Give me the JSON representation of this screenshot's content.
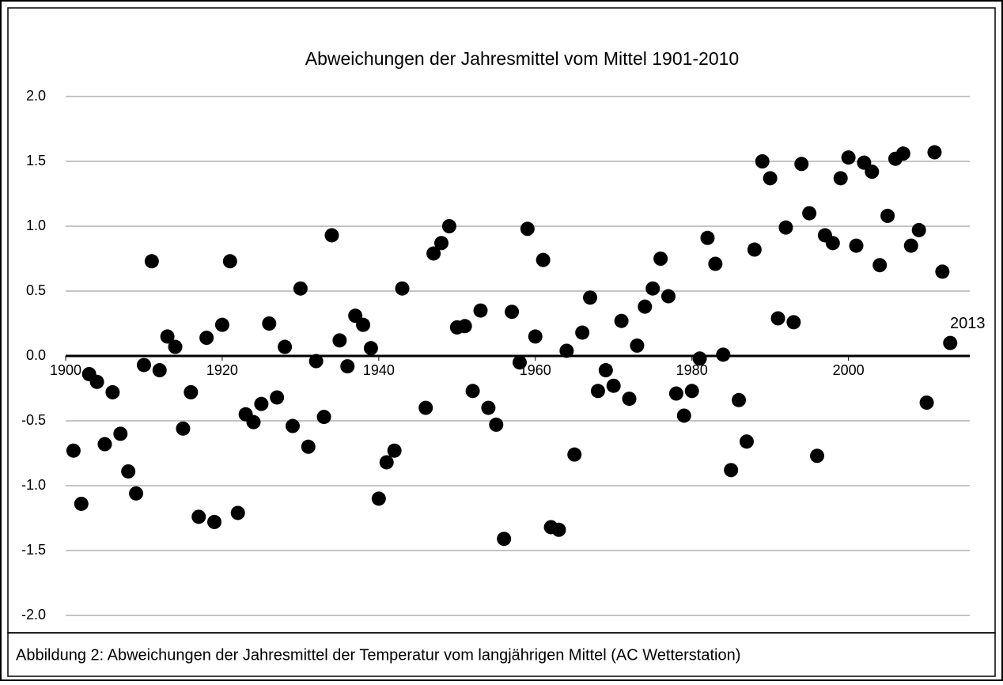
{
  "chart_data": {
    "type": "scatter",
    "title": "Abweichungen der Jahresmittel vom Mittel 1901-2010",
    "caption": "Abbildung 2: Abweichungen der Jahresmittel der Temperatur vom langjährigen Mittel (AC Wetterstation)",
    "annotation": "2013",
    "color": "#000000",
    "grid": true,
    "x": [
      1901,
      1902,
      1903,
      1904,
      1905,
      1906,
      1907,
      1908,
      1909,
      1910,
      1911,
      1912,
      1913,
      1914,
      1915,
      1916,
      1917,
      1918,
      1919,
      1920,
      1921,
      1922,
      1923,
      1924,
      1925,
      1926,
      1927,
      1928,
      1929,
      1930,
      1931,
      1932,
      1933,
      1934,
      1935,
      1936,
      1937,
      1938,
      1939,
      1940,
      1941,
      1942,
      1943,
      1946,
      1947,
      1948,
      1949,
      1950,
      1951,
      1952,
      1953,
      1954,
      1955,
      1956,
      1957,
      1958,
      1959,
      1960,
      1961,
      1962,
      1963,
      1964,
      1965,
      1966,
      1967,
      1968,
      1969,
      1970,
      1971,
      1972,
      1973,
      1974,
      1975,
      1976,
      1977,
      1978,
      1979,
      1980,
      1981,
      1982,
      1983,
      1984,
      1985,
      1986,
      1987,
      1988,
      1989,
      1990,
      1991,
      1992,
      1993,
      1994,
      1995,
      1996,
      1997,
      1998,
      1999,
      2000,
      2001,
      2002,
      2003,
      2004,
      2005,
      2006,
      2007,
      2008,
      2009,
      2010,
      2011,
      2012,
      2013
    ],
    "values": [
      -0.73,
      -1.14,
      -0.14,
      -0.2,
      -0.68,
      -0.28,
      -0.6,
      -0.89,
      -1.06,
      -0.07,
      0.73,
      -0.11,
      0.15,
      0.07,
      -0.56,
      -0.28,
      -1.24,
      0.14,
      -1.28,
      0.24,
      0.73,
      -1.21,
      -0.45,
      -0.51,
      -0.37,
      0.25,
      -0.32,
      0.07,
      -0.54,
      0.52,
      -0.7,
      -0.04,
      -0.47,
      0.93,
      0.12,
      -0.08,
      0.31,
      0.24,
      0.06,
      -1.1,
      -0.82,
      -0.73,
      0.52,
      -0.4,
      0.79,
      0.87,
      1.0,
      0.22,
      0.23,
      -0.27,
      0.35,
      -0.4,
      -0.53,
      -1.41,
      0.34,
      -0.05,
      0.98,
      0.15,
      0.74,
      -1.32,
      -1.34,
      0.04,
      -0.76,
      0.18,
      0.45,
      -0.27,
      -0.11,
      -0.23,
      0.27,
      -0.33,
      0.08,
      0.38,
      0.52,
      0.75,
      0.46,
      -0.29,
      -0.46,
      -0.27,
      -0.02,
      0.91,
      0.71,
      0.01,
      -0.88,
      -0.34,
      -0.66,
      0.82,
      1.5,
      1.37,
      0.29,
      0.99,
      0.26,
      1.48,
      1.1,
      -0.77,
      0.93,
      0.87,
      1.37,
      1.53,
      0.85,
      1.49,
      1.42,
      0.7,
      1.08,
      1.52,
      1.56,
      0.85,
      0.97,
      -0.36,
      1.57,
      0.65,
      0.1
    ],
    "xlim": [
      1900,
      2015.5
    ],
    "xticks": [
      1900,
      1920,
      1940,
      1960,
      1980,
      2000
    ],
    "ylim": [
      -2,
      2
    ],
    "yticks": [
      {
        "value": -2,
        "label": "-2.0"
      },
      -1.5,
      {
        "value": -1,
        "label": "-1.0"
      },
      -0.5,
      {
        "value": 0,
        "label": "0.0"
      },
      0.5,
      {
        "value": 1,
        "label": "1.0"
      },
      1.5,
      {
        "value": 2,
        "label": "2.0"
      }
    ]
  }
}
